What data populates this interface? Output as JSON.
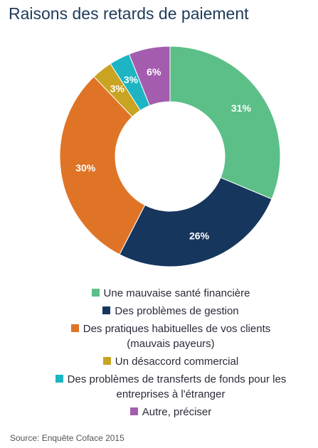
{
  "chart_data": {
    "type": "donut",
    "title": "Raisons des retards de paiement",
    "categories": [
      "Une mauvaise santé financière",
      "Des problèmes de gestion",
      "Des pratiques habituelles de vos clients (mauvais payeurs)",
      "Un désaccord commercial",
      "Des problèmes de transferts de fonds pour les entreprises à l'étranger",
      "Autre, préciser"
    ],
    "values": [
      31,
      26,
      30,
      3,
      3,
      6
    ],
    "value_labels": [
      "31%",
      "26%",
      "30%",
      "3%",
      "3%",
      "6%"
    ],
    "colors": [
      "#5bbf87",
      "#17365d",
      "#e07426",
      "#c9a322",
      "#1db5c3",
      "#a45dae"
    ],
    "source": "Source: Enquête Coface 2015"
  }
}
